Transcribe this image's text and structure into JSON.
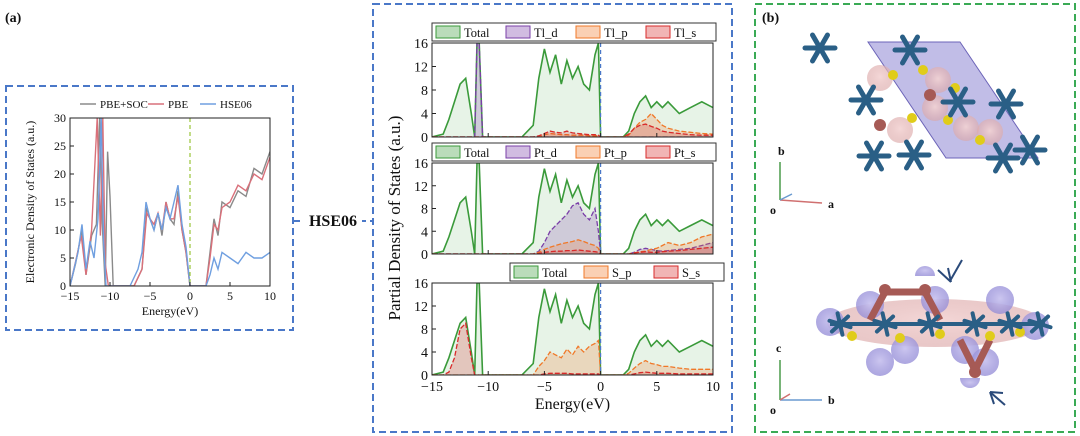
{
  "panel_labels": {
    "a": "(a)",
    "b": "(b)"
  },
  "connector_label": "HSE06",
  "colors": {
    "frame_blue": "#4a78c8",
    "frame_green": "#3aaa55",
    "pbe_soc": "#8a8a8a",
    "pbe": "#d9707a",
    "hse06": "#6f9fe0",
    "total": "#3a9a3a",
    "d_orbital": "#7a3fa8",
    "p_orbital": "#f07828",
    "s_orbital": "#d82a2a",
    "atom_pt": "#2a5f86",
    "atom_s": "#e0cc1a",
    "atom_tl": "#a65a55",
    "iso_surface": "#9d96dc"
  },
  "crystal": {
    "top_view_axes": {
      "vertical": "b",
      "horizontal": "a",
      "origin": "o"
    },
    "side_view_axes": {
      "vertical": "c",
      "horizontal": "b",
      "origin": "o"
    }
  },
  "chart_data": [
    {
      "type": "line",
      "panel": "(a)",
      "xlabel": "Energy(eV)",
      "ylabel": "Electronic Density of States (a.u.)",
      "xlim": [
        -15,
        10
      ],
      "ylim": [
        0,
        30
      ],
      "xticks": [
        -15,
        -10,
        -5,
        0,
        5,
        10
      ],
      "yticks": [
        0,
        5,
        10,
        15,
        20,
        25,
        30
      ],
      "fermi_level": 0,
      "legend": [
        "PBE+SOC",
        "PBE",
        "HSE06"
      ],
      "series": [
        {
          "name": "PBE+SOC",
          "color": "#8a8a8a",
          "x": [
            -15,
            -14.3,
            -13.5,
            -13,
            -12.3,
            -11.7,
            -11.3,
            -11,
            -10.6,
            -10.3,
            -10,
            -9.6,
            -9.2,
            -8,
            -7,
            -6,
            -5.4,
            -5,
            -4.5,
            -4,
            -3.5,
            -3,
            -2.5,
            -2,
            -1.5,
            -1,
            -0.5,
            0,
            1,
            2,
            2.5,
            3,
            3.5,
            4,
            5,
            6,
            7,
            8,
            9,
            10
          ],
          "y": [
            0,
            4,
            10,
            2,
            9,
            11,
            30,
            12,
            0,
            24,
            16,
            0,
            0,
            0,
            0,
            3,
            14,
            12,
            10,
            13,
            9,
            15,
            12,
            11,
            17,
            10,
            6,
            0,
            0,
            0,
            6,
            12,
            9,
            15,
            14,
            17,
            16,
            21,
            20,
            24
          ]
        },
        {
          "name": "PBE",
          "color": "#d9707a",
          "x": [
            -15,
            -14.2,
            -13.6,
            -13,
            -12.3,
            -11.6,
            -11.2,
            -10.9,
            -10.6,
            -10.2,
            -9.6,
            -9.2,
            -8,
            -7,
            -6,
            -5.4,
            -5,
            -4.5,
            -4,
            -3.5,
            -3,
            -2.5,
            -2,
            -1.5,
            -1,
            -0.5,
            0,
            1,
            2,
            2.5,
            3,
            3.5,
            4,
            5,
            6,
            7,
            8,
            9,
            10
          ],
          "y": [
            0,
            5,
            9,
            2,
            10,
            30,
            9,
            30,
            4,
            0,
            0,
            0,
            0,
            0,
            3,
            13,
            12,
            11,
            13,
            10,
            15,
            12,
            12,
            16,
            10,
            6,
            0,
            0,
            0,
            5,
            11,
            10,
            14,
            15,
            18,
            17,
            20,
            19,
            23
          ]
        },
        {
          "name": "HSE06",
          "color": "#6f9fe0",
          "x": [
            -15,
            -14.5,
            -14,
            -13.5,
            -13,
            -12.5,
            -12,
            -11.5,
            -11.1,
            -10.8,
            -10.5,
            -10,
            -9.5,
            -8.5,
            -7.5,
            -6.5,
            -6,
            -5.5,
            -5,
            -4.5,
            -4,
            -3.5,
            -3,
            -2.5,
            -2,
            -1.5,
            -1,
            -0.5,
            0,
            0.5,
            1,
            1.5,
            2,
            2.5,
            3,
            3.5,
            4,
            5,
            6,
            7,
            8,
            9,
            10
          ],
          "y": [
            0,
            3,
            6,
            11,
            3,
            8,
            5,
            12,
            30,
            8,
            0,
            0,
            0,
            0,
            0,
            3,
            6,
            15,
            12,
            10,
            13,
            10,
            14,
            12,
            15,
            18,
            11,
            7,
            0,
            0,
            0,
            0,
            0,
            2,
            5,
            3,
            6,
            5,
            4,
            6,
            5,
            5,
            6
          ]
        }
      ]
    },
    {
      "type": "area",
      "panel": "(a) middle, top: Tl projection",
      "xlim": [
        -15,
        10
      ],
      "ylim": [
        0,
        16
      ],
      "yticks": [
        0,
        4,
        8,
        12,
        16
      ],
      "fermi_level": 0,
      "legend": [
        "Total",
        "Tl_d",
        "Tl_p",
        "Tl_s"
      ],
      "x": [
        -15,
        -14,
        -13.5,
        -13,
        -12.5,
        -12,
        -11.5,
        -11.2,
        -11,
        -10.8,
        -10.5,
        -10,
        -9,
        -8,
        -7,
        -6,
        -5.5,
        -5,
        -4.5,
        -4,
        -3.5,
        -3,
        -2.5,
        -2,
        -1.5,
        -1,
        -0.5,
        -0.2,
        0,
        0.5,
        1,
        2,
        2.5,
        3,
        3.5,
        4,
        4.5,
        5,
        5.5,
        6,
        7,
        8,
        9,
        10
      ],
      "series": [
        {
          "name": "Total",
          "color": "#3a9a3a",
          "values": [
            0,
            0.5,
            3,
            6,
            9,
            10,
            4,
            0,
            16,
            16,
            0,
            0,
            0,
            0,
            0,
            2,
            10,
            15,
            11,
            14,
            9,
            13,
            10,
            12,
            9,
            8,
            14,
            16,
            0,
            0,
            0,
            0,
            1,
            4,
            6,
            7,
            5,
            6,
            5,
            6,
            4,
            5,
            6,
            5
          ]
        },
        {
          "name": "Tl_d",
          "color": "#7a3fa8",
          "values": [
            0,
            0,
            0,
            0,
            0,
            0,
            0,
            0,
            16,
            16,
            0,
            0,
            0,
            0,
            0,
            0,
            0,
            0,
            0,
            0,
            0,
            0,
            0,
            0,
            0,
            0,
            0,
            0,
            0,
            0,
            0,
            0,
            0,
            0,
            0,
            0,
            0,
            0,
            0,
            0,
            0,
            0,
            0,
            0
          ]
        },
        {
          "name": "Tl_p",
          "color": "#f07828",
          "values": [
            0,
            0,
            0,
            0,
            0,
            0,
            0,
            0,
            0,
            0,
            0,
            0,
            0,
            0,
            0,
            0,
            0,
            0.4,
            0.6,
            0.5,
            0.4,
            0.4,
            0.3,
            0.3,
            0.3,
            0.2,
            0.2,
            0.2,
            0,
            0,
            0,
            0,
            0.3,
            1.5,
            2.5,
            3,
            4,
            3,
            2,
            1.5,
            1,
            0.8,
            0.6,
            0.5
          ]
        },
        {
          "name": "Tl_s",
          "color": "#d82a2a",
          "values": [
            0,
            0,
            0,
            0,
            0,
            0,
            0,
            0,
            0,
            0,
            0,
            0,
            0,
            0,
            0,
            0,
            0.2,
            0.6,
            1,
            0.8,
            0.7,
            1,
            0.7,
            0.6,
            0.5,
            0.4,
            0.4,
            0.3,
            0,
            0,
            0,
            0,
            0.5,
            1.5,
            2,
            2.2,
            1.8,
            1.5,
            1,
            0.8,
            0.6,
            0.4,
            0.3,
            0.3
          ]
        }
      ]
    },
    {
      "type": "area",
      "panel": "(a) middle, centre: Pt projection",
      "xlim": [
        -15,
        10
      ],
      "ylim": [
        0,
        16
      ],
      "yticks": [
        0,
        4,
        8,
        12,
        16
      ],
      "fermi_level": 0,
      "legend": [
        "Total",
        "Pt_d",
        "Pt_p",
        "Pt_s"
      ],
      "x": [
        -15,
        -14,
        -13.5,
        -13,
        -12.5,
        -12,
        -11.5,
        -11.2,
        -11,
        -10.8,
        -10.5,
        -10,
        -9,
        -8,
        -7,
        -6,
        -5.5,
        -5,
        -4.5,
        -4,
        -3.5,
        -3,
        -2.5,
        -2,
        -1.5,
        -1,
        -0.5,
        -0.2,
        0,
        0.5,
        1,
        2,
        2.5,
        3,
        3.5,
        4,
        4.5,
        5,
        5.5,
        6,
        7,
        8,
        9,
        10
      ],
      "series": [
        {
          "name": "Total",
          "color": "#3a9a3a",
          "values": [
            0,
            0.5,
            3,
            6,
            9,
            10,
            4,
            0,
            16,
            16,
            0,
            0,
            0,
            0,
            0,
            2,
            10,
            15,
            11,
            14,
            9,
            13,
            10,
            12,
            9,
            8,
            14,
            16,
            0,
            0,
            0,
            0,
            1,
            4,
            6,
            7,
            5,
            6,
            5,
            6,
            4,
            5,
            6,
            5
          ]
        },
        {
          "name": "Pt_d",
          "color": "#7a3fa8",
          "values": [
            0,
            0,
            0,
            0,
            0,
            0,
            0,
            0,
            0,
            0,
            0,
            0,
            0,
            0,
            0,
            0,
            0.5,
            2,
            4,
            5,
            6,
            7,
            8.5,
            9,
            7,
            6,
            8,
            4,
            0,
            0,
            0,
            0,
            0,
            0.3,
            0.8,
            1,
            0.8,
            0.6,
            0.5,
            0.6,
            0.8,
            1,
            1.5,
            2
          ]
        },
        {
          "name": "Pt_p",
          "color": "#f07828",
          "values": [
            0,
            0,
            0,
            0,
            0,
            0,
            0,
            0,
            0,
            0,
            0,
            0,
            0,
            0,
            0,
            0,
            0.3,
            0.8,
            1.2,
            1.5,
            1.8,
            2,
            2.2,
            2.5,
            2.2,
            1.8,
            1.5,
            1,
            0,
            0,
            0,
            0,
            0,
            0.2,
            0.4,
            0.5,
            0.8,
            1,
            1.5,
            2,
            1.5,
            2,
            3,
            3.5
          ]
        },
        {
          "name": "Pt_s",
          "color": "#d82a2a",
          "values": [
            0,
            0,
            0,
            0,
            0,
            0,
            0,
            0,
            0,
            0,
            0,
            0,
            0,
            0,
            0,
            0,
            0.1,
            0.3,
            0.4,
            0.5,
            0.5,
            0.6,
            0.6,
            0.7,
            0.6,
            0.5,
            0.4,
            0.3,
            0,
            0,
            0,
            0,
            0,
            0.2,
            0.3,
            0.4,
            0.3,
            0.3,
            0.4,
            0.5,
            0.6,
            0.8,
            1,
            1.2
          ]
        }
      ]
    },
    {
      "type": "area",
      "panel": "(a) middle, bottom: S projection",
      "xlabel": "Energy(eV)",
      "ylabel": "Partial Density of States (a.u.)",
      "xlim": [
        -15,
        10
      ],
      "ylim": [
        0,
        16
      ],
      "xticks": [
        -15,
        -10,
        -5,
        0,
        5,
        10
      ],
      "yticks": [
        0,
        4,
        8,
        12,
        16
      ],
      "fermi_level": 0,
      "legend": [
        "Total",
        "S_p",
        "S_s"
      ],
      "x": [
        -15,
        -14,
        -13.5,
        -13,
        -12.5,
        -12,
        -11.5,
        -11.2,
        -11,
        -10.8,
        -10.5,
        -10,
        -9,
        -8,
        -7,
        -6,
        -5.5,
        -5,
        -4.5,
        -4,
        -3.5,
        -3,
        -2.5,
        -2,
        -1.5,
        -1,
        -0.5,
        -0.2,
        0,
        0.5,
        1,
        2,
        2.5,
        3,
        3.5,
        4,
        4.5,
        5,
        5.5,
        6,
        7,
        8,
        9,
        10
      ],
      "series": [
        {
          "name": "Total",
          "color": "#3a9a3a",
          "values": [
            0,
            0.5,
            3,
            6,
            9,
            10,
            4,
            0,
            16,
            16,
            0,
            0,
            0,
            0,
            0,
            2,
            10,
            15,
            11,
            14,
            9,
            13,
            10,
            12,
            9,
            8,
            14,
            16,
            0,
            0,
            0,
            0,
            1,
            4,
            6,
            7,
            5,
            6,
            5,
            6,
            4,
            5,
            6,
            5
          ]
        },
        {
          "name": "S_p",
          "color": "#f07828",
          "values": [
            0,
            0,
            0,
            0,
            0,
            0,
            0,
            0,
            0,
            0,
            0,
            0,
            0,
            0,
            0,
            0,
            1.5,
            2.5,
            4,
            3.5,
            3,
            4.5,
            3.5,
            5,
            4,
            5,
            5.5,
            6,
            0,
            0,
            0,
            0,
            0.3,
            1.2,
            2,
            2.5,
            2,
            1.8,
            1.5,
            1.5,
            1.2,
            1,
            1,
            1
          ]
        },
        {
          "name": "S_s",
          "color": "#d82a2a",
          "values": [
            0,
            0,
            0.5,
            3,
            8,
            9,
            3,
            0,
            0,
            0,
            0,
            0,
            0,
            0,
            0,
            0,
            0,
            0.2,
            0.3,
            0.3,
            0.3,
            0.3,
            0.2,
            0.2,
            0.2,
            0.2,
            0.2,
            0.2,
            0,
            0,
            0,
            0,
            0,
            0.2,
            0.4,
            0.5,
            0.4,
            0.3,
            0.3,
            0.3,
            0.2,
            0.2,
            0.2,
            0.2
          ]
        }
      ]
    }
  ]
}
